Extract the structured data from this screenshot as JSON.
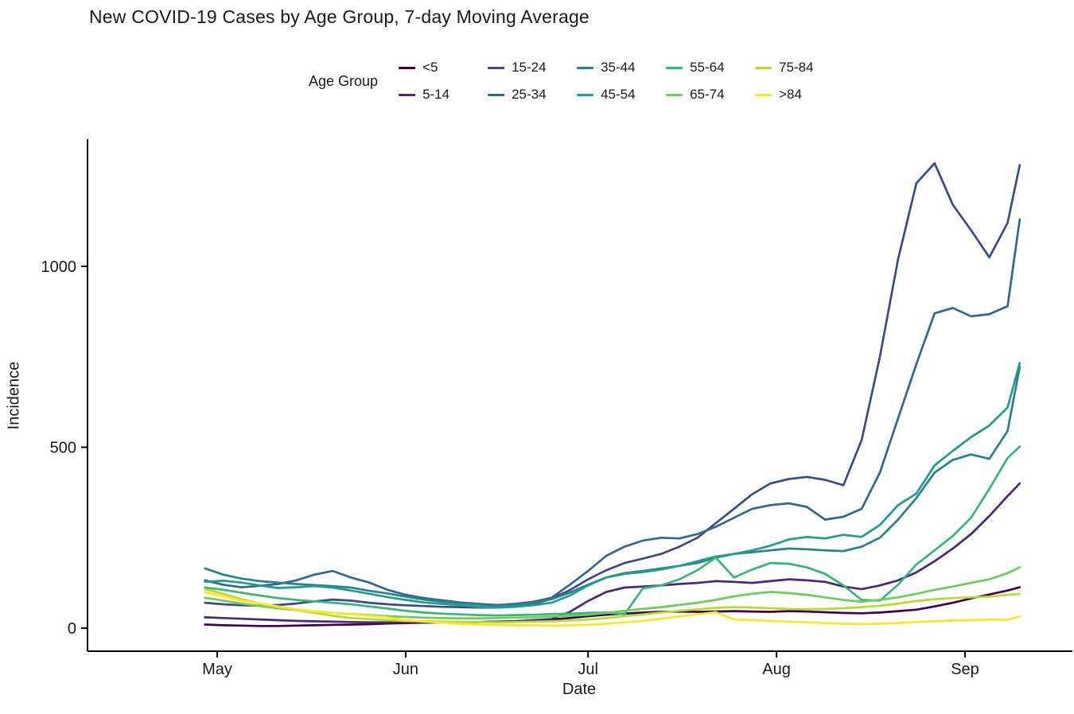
{
  "chart_data": {
    "type": "line",
    "title": "New COVID-19 Cases by Age Group, 7-day Moving Average",
    "xlabel": "Date",
    "ylabel": "Incidence",
    "legend_title": "Age Group",
    "legend_position": "top",
    "grid": false,
    "theme": "classic (no gridlines, black left/bottom spines)",
    "ylim": [
      0,
      1352
    ],
    "y_ticks": [
      0,
      500,
      1000
    ],
    "x_tick_labels": [
      "May",
      "Jun",
      "Jul",
      "Aug",
      "Sep"
    ],
    "x_tick_days": [
      2,
      33,
      63,
      94,
      125
    ],
    "x_unit": "days since Apr 29",
    "days": [
      0,
      3,
      6,
      9,
      12,
      15,
      18,
      21,
      24,
      27,
      30,
      33,
      36,
      39,
      42,
      45,
      48,
      51,
      54,
      57,
      60,
      63,
      66,
      69,
      72,
      75,
      78,
      81,
      84,
      87,
      90,
      93,
      96,
      99,
      102,
      105,
      108,
      111,
      114,
      117,
      120,
      123,
      126,
      129,
      132,
      134
    ],
    "dates": [
      "Apr 29",
      "May 2",
      "May 5",
      "May 8",
      "May 11",
      "May 14",
      "May 17",
      "May 20",
      "May 23",
      "May 26",
      "May 29",
      "Jun 1",
      "Jun 4",
      "Jun 7",
      "Jun 10",
      "Jun 13",
      "Jun 16",
      "Jun 19",
      "Jun 22",
      "Jun 25",
      "Jun 28",
      "Jul 1",
      "Jul 4",
      "Jul 7",
      "Jul 10",
      "Jul 13",
      "Jul 16",
      "Jul 19",
      "Jul 22",
      "Jul 25",
      "Jul 28",
      "Jul 31",
      "Aug 3",
      "Aug 6",
      "Aug 9",
      "Aug 12",
      "Aug 15",
      "Aug 18",
      "Aug 21",
      "Aug 24",
      "Aug 27",
      "Aug 30",
      "Sep 2",
      "Sep 5",
      "Sep 8",
      "Sep 10"
    ],
    "series": [
      {
        "name": "<5",
        "color": "#440154",
        "values": [
          10,
          8,
          7,
          6,
          6,
          7,
          8,
          9,
          10,
          11,
          13,
          14,
          15,
          16,
          17,
          17,
          18,
          19,
          21,
          24,
          28,
          33,
          37,
          40,
          43,
          45,
          46,
          45,
          46,
          47,
          46,
          45,
          47,
          46,
          44,
          42,
          41,
          43,
          47,
          51,
          60,
          70,
          82,
          93,
          104,
          113
        ]
      },
      {
        "name": "5-14",
        "color": "#482878",
        "values": [
          30,
          28,
          26,
          24,
          22,
          20,
          19,
          18,
          17,
          16,
          16,
          16,
          15,
          16,
          16,
          17,
          18,
          19,
          22,
          25,
          45,
          75,
          100,
          112,
          115,
          118,
          122,
          125,
          130,
          128,
          125,
          130,
          135,
          132,
          128,
          115,
          108,
          118,
          132,
          154,
          185,
          220,
          260,
          310,
          365,
          400
        ]
      },
      {
        "name": "15-24",
        "color": "#3E4A89",
        "values": [
          70,
          66,
          63,
          62,
          64,
          68,
          74,
          79,
          76,
          70,
          66,
          63,
          61,
          59,
          58,
          57,
          57,
          59,
          65,
          82,
          105,
          135,
          160,
          180,
          192,
          205,
          225,
          250,
          290,
          330,
          370,
          400,
          412,
          418,
          410,
          395,
          520,
          750,
          1020,
          1230,
          1285,
          1170,
          1100,
          1025,
          1120,
          1280
        ]
      },
      {
        "name": "25-34",
        "color": "#31688E",
        "values": [
          132,
          120,
          113,
          117,
          122,
          132,
          148,
          158,
          140,
          126,
          106,
          92,
          83,
          77,
          71,
          67,
          64,
          67,
          73,
          84,
          120,
          158,
          200,
          225,
          242,
          250,
          248,
          260,
          280,
          305,
          330,
          340,
          345,
          335,
          300,
          308,
          330,
          430,
          580,
          730,
          870,
          885,
          862,
          868,
          890,
          1130
        ]
      },
      {
        "name": "35-44",
        "color": "#26828E",
        "values": [
          165,
          148,
          137,
          130,
          126,
          122,
          119,
          116,
          112,
          103,
          96,
          87,
          79,
          73,
          69,
          65,
          62,
          64,
          69,
          80,
          98,
          120,
          140,
          152,
          158,
          165,
          172,
          180,
          195,
          205,
          210,
          215,
          220,
          218,
          215,
          213,
          225,
          250,
          300,
          360,
          430,
          465,
          480,
          468,
          545,
          722
        ]
      },
      {
        "name": "45-54",
        "color": "#1F9E89",
        "values": [
          128,
          131,
          126,
          118,
          111,
          113,
          116,
          112,
          104,
          95,
          86,
          78,
          71,
          67,
          63,
          59,
          57,
          59,
          63,
          70,
          90,
          118,
          140,
          150,
          155,
          162,
          172,
          185,
          198,
          205,
          215,
          228,
          245,
          252,
          248,
          258,
          252,
          285,
          340,
          372,
          450,
          490,
          528,
          560,
          610,
          733
        ]
      },
      {
        "name": "55-64",
        "color": "#35B779",
        "values": [
          112,
          106,
          98,
          90,
          83,
          78,
          74,
          70,
          66,
          60,
          54,
          48,
          43,
          40,
          38,
          36,
          35,
          36,
          37,
          39,
          40,
          42,
          43,
          38,
          110,
          118,
          135,
          160,
          195,
          140,
          162,
          180,
          178,
          168,
          150,
          118,
          78,
          76,
          120,
          176,
          215,
          255,
          305,
          385,
          470,
          502
        ]
      },
      {
        "name": "65-74",
        "color": "#6DCD59",
        "values": [
          84,
          76,
          68,
          61,
          55,
          50,
          46,
          42,
          39,
          36,
          33,
          31,
          29,
          28,
          27,
          27,
          28,
          29,
          30,
          32,
          34,
          37,
          42,
          48,
          53,
          58,
          64,
          70,
          78,
          88,
          95,
          100,
          97,
          92,
          85,
          78,
          73,
          78,
          85,
          95,
          106,
          115,
          125,
          135,
          152,
          168
        ]
      },
      {
        "name": "75-84",
        "color": "#B4DE2C",
        "values": [
          108,
          95,
          80,
          68,
          58,
          50,
          42,
          34,
          28,
          25,
          22,
          20,
          19,
          18,
          17,
          17,
          16,
          17,
          18,
          19,
          21,
          24,
          28,
          33,
          38,
          43,
          48,
          52,
          56,
          58,
          57,
          55,
          53,
          52,
          53,
          55,
          58,
          62,
          68,
          75,
          80,
          83,
          85,
          87,
          92,
          95
        ]
      },
      {
        "name": ">84",
        "color": "#FDE725",
        "values": [
          100,
          88,
          76,
          68,
          60,
          52,
          46,
          42,
          38,
          34,
          30,
          22,
          18,
          15,
          12,
          10,
          9,
          8,
          8,
          7,
          8,
          9,
          12,
          16,
          20,
          26,
          32,
          38,
          44,
          24,
          22,
          20,
          18,
          16,
          14,
          12,
          11,
          12,
          14,
          17,
          19,
          21,
          22,
          24,
          23,
          33
        ]
      }
    ]
  }
}
